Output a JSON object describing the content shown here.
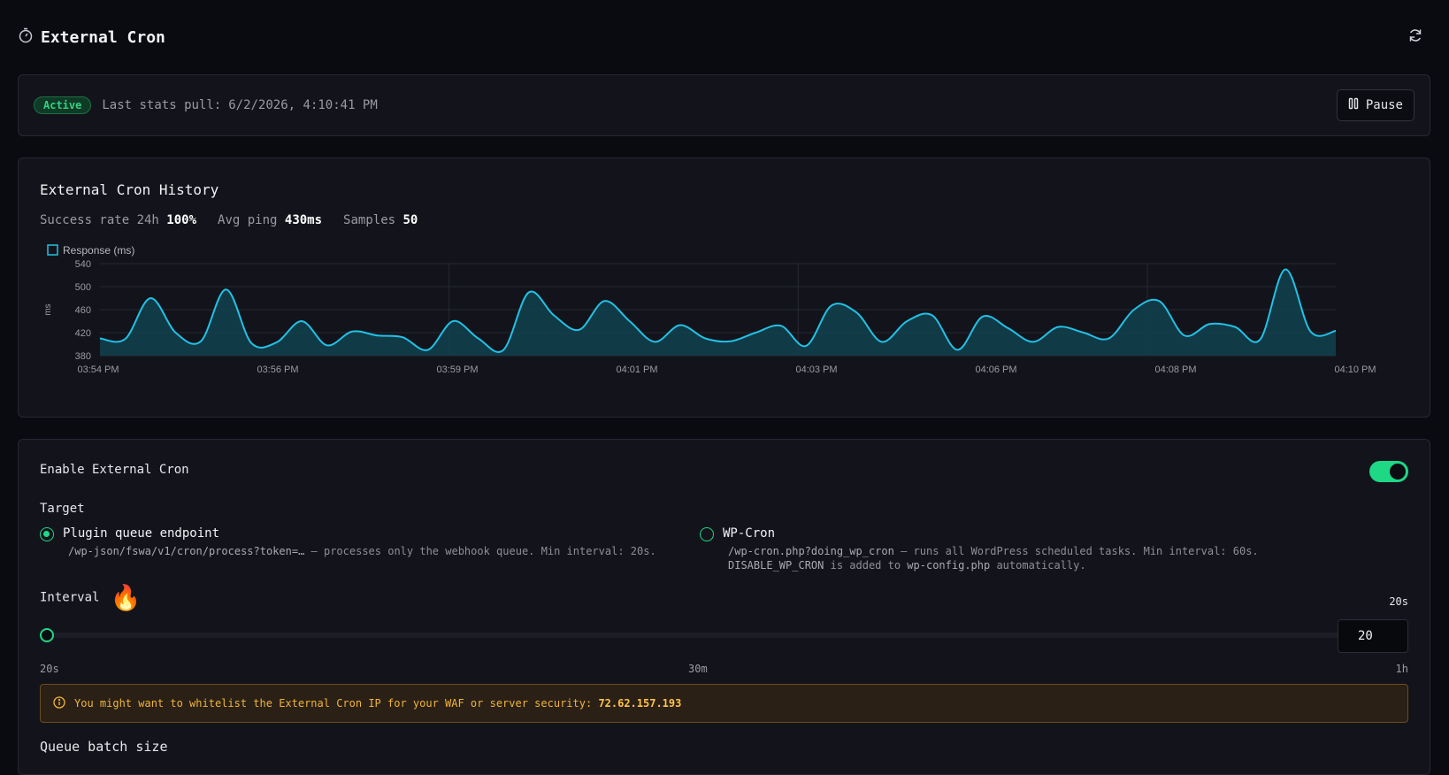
{
  "header": {
    "title": "External Cron",
    "title_icon": "timer-icon",
    "refresh_icon": "refresh-icon"
  },
  "status": {
    "badge": "Active",
    "last_pull_label": "Last stats pull:",
    "last_pull_value": "6/2/2026, 4:10:41 PM",
    "pause_label": "Pause"
  },
  "history": {
    "title": "External Cron History",
    "success_label": "Success rate 24h",
    "success_value": "100%",
    "avg_label": "Avg ping",
    "avg_value": "430ms",
    "samples_label": "Samples",
    "samples_value": "50"
  },
  "chart_data": {
    "type": "area",
    "legend": "Response (ms)",
    "legend_position": "top-left",
    "ylabel": "ms",
    "ylim": [
      380,
      540
    ],
    "yticks": [
      540,
      500,
      460,
      420,
      380
    ],
    "xticks": [
      "03:54 PM",
      "03:56 PM",
      "03:59 PM",
      "04:01 PM",
      "04:03 PM",
      "04:06 PM",
      "04:08 PM",
      "04:10 PM"
    ],
    "color": "#22c1e6",
    "grid": true,
    "series": [
      {
        "name": "Response (ms)",
        "values": [
          410,
          409,
          480,
          420,
          405,
          495,
          402,
          403,
          440,
          398,
          422,
          415,
          412,
          390,
          440,
          410,
          390,
          490,
          450,
          425,
          475,
          440,
          404,
          433,
          410,
          405,
          420,
          432,
          397,
          467,
          455,
          404,
          440,
          450,
          390,
          448,
          428,
          404,
          430,
          420,
          410,
          460,
          475,
          415,
          435,
          430,
          408,
          530,
          422,
          423
        ]
      }
    ]
  },
  "settings": {
    "enable_label": "Enable External Cron",
    "target_label": "Target",
    "options": [
      {
        "title": "Plugin queue endpoint",
        "code": "/wp-json/fswa/v1/cron/process?token=…",
        "desc": " — processes only the webhook queue. Min interval: 20s.",
        "checked": true
      },
      {
        "title": "WP-Cron",
        "code": "/wp-cron.php?doing_wp_cron",
        "desc": " — runs all WordPress scheduled tasks. Min interval: 60s.",
        "line2_code1": "DISABLE_WP_CRON",
        "line2_mid": " is added to ",
        "line2_code2": "wp-config.php",
        "line2_end": " automatically.",
        "checked": false
      }
    ],
    "interval_label": "Interval",
    "interval_emoji": "🔥",
    "interval_display": "20s",
    "interval_value": "20",
    "interval_fraction": 0,
    "ticks": {
      "min": "20s",
      "mid": "30m",
      "max": "1h"
    },
    "warning_text": "You might want to whitelist the External Cron IP for your WAF or server security:",
    "warning_ip": "72.62.157.193",
    "batch_label": "Queue batch size"
  }
}
